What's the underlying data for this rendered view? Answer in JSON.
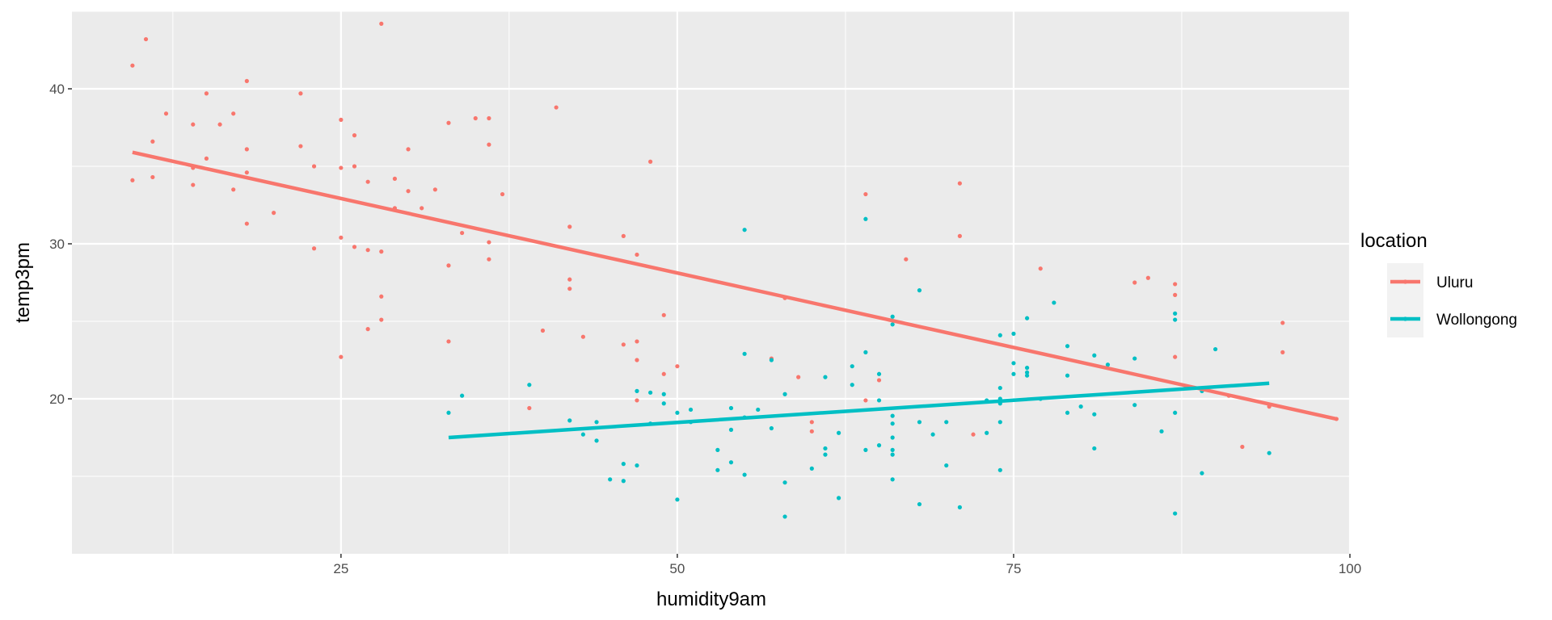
{
  "chart_data": {
    "type": "scatter",
    "title": "",
    "xlabel": "humidity9am",
    "ylabel": "temp3pm",
    "xlim": [
      5,
      100
    ],
    "ylim": [
      10,
      45
    ],
    "x_ticks": [
      25,
      50,
      75,
      100
    ],
    "y_ticks": [
      20,
      30,
      40
    ],
    "grid": true,
    "legend": {
      "title": "location",
      "placement": "right",
      "entries": [
        "Uluru",
        "Wollongong"
      ]
    },
    "series": [
      {
        "name": "Uluru",
        "color": "#F8766D",
        "points": [
          [
            9.5,
            41.5
          ],
          [
            10.5,
            43.2
          ],
          [
            9.5,
            34.1
          ],
          [
            11,
            36.6
          ],
          [
            11,
            34.3
          ],
          [
            12,
            38.4
          ],
          [
            14,
            37.7
          ],
          [
            14,
            33.8
          ],
          [
            14,
            34.9
          ],
          [
            15,
            39.7
          ],
          [
            15,
            35.5
          ],
          [
            16,
            37.7
          ],
          [
            17,
            38.4
          ],
          [
            17,
            33.5
          ],
          [
            18,
            40.5
          ],
          [
            18,
            36.1
          ],
          [
            18,
            34.6
          ],
          [
            18,
            31.3
          ],
          [
            20,
            32
          ],
          [
            22,
            39.7
          ],
          [
            22,
            36.3
          ],
          [
            23,
            35
          ],
          [
            23,
            29.7
          ],
          [
            25,
            38
          ],
          [
            25,
            34.9
          ],
          [
            25,
            30.4
          ],
          [
            25,
            22.7
          ],
          [
            26,
            37
          ],
          [
            26,
            35
          ],
          [
            26,
            29.8
          ],
          [
            27,
            34
          ],
          [
            27,
            29.6
          ],
          [
            27,
            24.5
          ],
          [
            28,
            44.2
          ],
          [
            28,
            29.5
          ],
          [
            28,
            26.6
          ],
          [
            28,
            25.1
          ],
          [
            29,
            34.2
          ],
          [
            29,
            32.3
          ],
          [
            30,
            36.1
          ],
          [
            30,
            33.4
          ],
          [
            31,
            32.3
          ],
          [
            32,
            33.5
          ],
          [
            33,
            37.8
          ],
          [
            33,
            28.6
          ],
          [
            33,
            23.7
          ],
          [
            34,
            30.7
          ],
          [
            35,
            38.1
          ],
          [
            36,
            38.1
          ],
          [
            36,
            36.4
          ],
          [
            36,
            30.1
          ],
          [
            36,
            29
          ],
          [
            37,
            33.2
          ],
          [
            39,
            19.4
          ],
          [
            40,
            24.4
          ],
          [
            41,
            38.8
          ],
          [
            42,
            31.1
          ],
          [
            42,
            27.7
          ],
          [
            42,
            27.1
          ],
          [
            43,
            24
          ],
          [
            46,
            30.5
          ],
          [
            46,
            23.5
          ],
          [
            47,
            29.3
          ],
          [
            47,
            23.7
          ],
          [
            47,
            22.5
          ],
          [
            47,
            19.9
          ],
          [
            48,
            35.3
          ],
          [
            49,
            25.4
          ],
          [
            49,
            21.6
          ],
          [
            50,
            22.1
          ],
          [
            57,
            22.6
          ],
          [
            58,
            26.5
          ],
          [
            59,
            21.4
          ],
          [
            60,
            18.5
          ],
          [
            60,
            17.9
          ],
          [
            64,
            33.2
          ],
          [
            64,
            19.9
          ],
          [
            65,
            21.2
          ],
          [
            67,
            29
          ],
          [
            71,
            33.9
          ],
          [
            71,
            30.5
          ],
          [
            72,
            17.7
          ],
          [
            77,
            28.4
          ],
          [
            84,
            27.5
          ],
          [
            85,
            27.8
          ],
          [
            87,
            27.4
          ],
          [
            87,
            26.7
          ],
          [
            87,
            22.7
          ],
          [
            91,
            20.2
          ],
          [
            92,
            16.9
          ],
          [
            94,
            19.5
          ],
          [
            95,
            24.9
          ],
          [
            95,
            23
          ],
          [
            99,
            18.7
          ]
        ],
        "trend": [
          [
            9.5,
            35.9
          ],
          [
            99,
            18.7
          ]
        ]
      },
      {
        "name": "Wollongong",
        "color": "#00BFC4",
        "points": [
          [
            33,
            19.1
          ],
          [
            34,
            20.2
          ],
          [
            39,
            20.9
          ],
          [
            42,
            18.6
          ],
          [
            43,
            17.7
          ],
          [
            44,
            18.5
          ],
          [
            44,
            17.3
          ],
          [
            45,
            14.8
          ],
          [
            46,
            15.8
          ],
          [
            46,
            14.7
          ],
          [
            47,
            20.5
          ],
          [
            47,
            15.7
          ],
          [
            48,
            20.4
          ],
          [
            48,
            18.4
          ],
          [
            49,
            20.3
          ],
          [
            49,
            19.7
          ],
          [
            50,
            19.1
          ],
          [
            50,
            13.5
          ],
          [
            51,
            19.3
          ],
          [
            51,
            18.5
          ],
          [
            53,
            16.7
          ],
          [
            53,
            15.4
          ],
          [
            54,
            19.4
          ],
          [
            54,
            18
          ],
          [
            54,
            15.9
          ],
          [
            55,
            30.9
          ],
          [
            55,
            22.9
          ],
          [
            55,
            18.8
          ],
          [
            55,
            15.1
          ],
          [
            56,
            19.3
          ],
          [
            57,
            22.5
          ],
          [
            57,
            18.1
          ],
          [
            58,
            20.3
          ],
          [
            58,
            14.6
          ],
          [
            58,
            12.4
          ],
          [
            60,
            15.5
          ],
          [
            61,
            21.4
          ],
          [
            61,
            16.8
          ],
          [
            61,
            16.4
          ],
          [
            62,
            17.8
          ],
          [
            62,
            13.6
          ],
          [
            63,
            22.1
          ],
          [
            63,
            20.9
          ],
          [
            64,
            31.6
          ],
          [
            64,
            23
          ],
          [
            64,
            16.7
          ],
          [
            65,
            21.6
          ],
          [
            65,
            19.9
          ],
          [
            65,
            17
          ],
          [
            66,
            25.3
          ],
          [
            66,
            24.8
          ],
          [
            66,
            18.9
          ],
          [
            66,
            18.4
          ],
          [
            66,
            17.5
          ],
          [
            66,
            16.7
          ],
          [
            66,
            16.4
          ],
          [
            66,
            14.8
          ],
          [
            68,
            27
          ],
          [
            68,
            18.5
          ],
          [
            68,
            13.2
          ],
          [
            69,
            17.7
          ],
          [
            70,
            18.5
          ],
          [
            70,
            15.7
          ],
          [
            71,
            13
          ],
          [
            73,
            19.9
          ],
          [
            73,
            17.8
          ],
          [
            74,
            24.1
          ],
          [
            74,
            20.7
          ],
          [
            74,
            20
          ],
          [
            74,
            19.7
          ],
          [
            74,
            18.5
          ],
          [
            74,
            15.4
          ],
          [
            75,
            24.2
          ],
          [
            75,
            22.3
          ],
          [
            75,
            21.6
          ],
          [
            76,
            25.2
          ],
          [
            76,
            22
          ],
          [
            76,
            21.7
          ],
          [
            76,
            21.5
          ],
          [
            77,
            20
          ],
          [
            78,
            26.2
          ],
          [
            79,
            23.4
          ],
          [
            79,
            21.5
          ],
          [
            79,
            19.1
          ],
          [
            80,
            19.5
          ],
          [
            81,
            22.8
          ],
          [
            81,
            19
          ],
          [
            81,
            16.8
          ],
          [
            82,
            22.2
          ],
          [
            84,
            22.6
          ],
          [
            84,
            19.6
          ],
          [
            86,
            17.9
          ],
          [
            87,
            25.5
          ],
          [
            87,
            25.1
          ],
          [
            87,
            19.1
          ],
          [
            87,
            12.6
          ],
          [
            89,
            20.5
          ],
          [
            89,
            15.2
          ],
          [
            90,
            23.2
          ],
          [
            94,
            16.5
          ]
        ],
        "trend": [
          [
            33,
            17.5
          ],
          [
            94,
            21
          ]
        ]
      }
    ]
  }
}
